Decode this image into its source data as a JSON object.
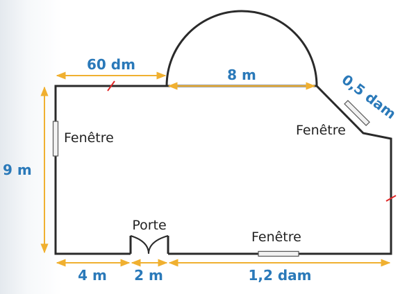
{
  "labels": {
    "top_left": "60 dm",
    "top_middle": "8 m",
    "diagonal": "0,5 dam",
    "left_height": "9 m",
    "bottom_left": "4 m",
    "bottom_door": "2 m",
    "bottom_right": "1,2 dam",
    "window_left": "Fenêtre",
    "window_right": "Fenêtre",
    "window_bottom": "Fenêtre",
    "door": "Porte"
  },
  "colors": {
    "wall": "#2a2a2a",
    "dimension_text": "#2a79b9",
    "dimension_arrow": "#f0b030",
    "tick_mark": "#e02828",
    "window_fill": "#f2f2f2"
  }
}
